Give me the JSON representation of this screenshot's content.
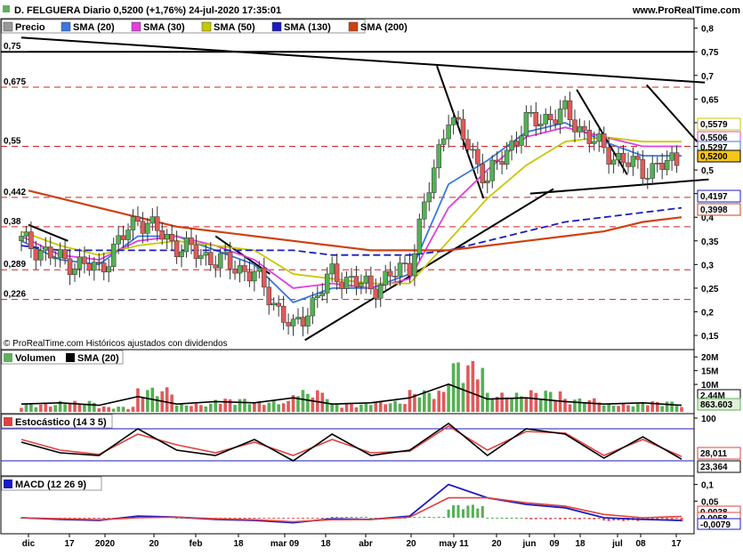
{
  "header": {
    "title": "D. FELGUERA Diario 0,5200 (+1,76%) 24-jul-2020 17:35:01",
    "site": "www.ProRealTime.com"
  },
  "panels": {
    "price": {
      "legend": [
        {
          "label": "Precio",
          "color": "#999999"
        },
        {
          "label": "SMA (20)",
          "color": "#3a78e0"
        },
        {
          "label": "SMA (30)",
          "color": "#e040e0"
        },
        {
          "label": "SMA (50)",
          "color": "#c8c800"
        },
        {
          "label": "SMA (130)",
          "color": "#1b1bc0"
        },
        {
          "label": "SMA (200)",
          "color": "#d04010"
        }
      ],
      "yaxis_ticks": [
        "0,8",
        "0,75",
        "0,7",
        "0,65",
        "0,6",
        "0,55",
        "0,5",
        "0,45",
        "0,4",
        "0,35",
        "0,3",
        "0,25",
        "0,2",
        "0,15"
      ],
      "level_labels": [
        "0,75",
        "0,675",
        "0,55",
        "0,442",
        "0,38",
        "0,289",
        "0,226"
      ],
      "value_boxes": [
        {
          "text": "0,5579",
          "color": "#c8c800"
        },
        {
          "text": "0,5506",
          "color": "#e040e0"
        },
        {
          "text": "0,5297",
          "color": "#3a78e0"
        },
        {
          "text": "0,5200",
          "color": "#000000"
        },
        {
          "text": "0,4197",
          "color": "#1b1bc0"
        },
        {
          "text": "0,3998",
          "color": "#d04010"
        }
      ],
      "copyright": "© ProRealTime.com Históricos ajustados con dividendos"
    },
    "volume": {
      "legend": [
        {
          "label": "Volumen",
          "color": "#60b060"
        },
        {
          "label": "SMA (20)",
          "color": "#000000"
        }
      ],
      "yaxis_ticks": [
        "20M",
        "15M",
        "10M"
      ],
      "value_boxes": [
        {
          "text": "2,44M",
          "color": "#000000"
        },
        {
          "text": "863.603",
          "color": "#60b060"
        }
      ]
    },
    "stochastic": {
      "legend": [
        {
          "label": "Estocástico (14 3 5)",
          "color": "#000000"
        }
      ],
      "yaxis_ticks": [
        "100"
      ],
      "value_boxes": [
        {
          "text": "28,011",
          "color": "#e04040"
        },
        {
          "text": "23,364",
          "color": "#000000"
        }
      ]
    },
    "macd": {
      "legend": [
        {
          "label": "MACD (12 26 9)",
          "color": "#000000"
        }
      ],
      "yaxis_ticks": [
        "0,1",
        "0,05"
      ],
      "value_boxes": [
        {
          "text": "0,0038",
          "color": "#e04040"
        },
        {
          "text": "0,0058",
          "color": "#e04040"
        },
        {
          "text": "-0,0079",
          "color": "#1b1bc0"
        }
      ]
    }
  },
  "xaxis_labels": [
    "dic",
    "17",
    "2020",
    "20",
    "feb",
    "18",
    "mar 09",
    "18",
    "abr",
    "20",
    "may 11",
    "20",
    "jun",
    "09",
    "18",
    "jul",
    "08",
    "17"
  ],
  "chart_data": {
    "type": "line",
    "title": "D. FELGUERA Diario 0,5200 (+1,76%) 24-jul-2020 17:35:01",
    "x": [
      "dic",
      "17",
      "2020",
      "20",
      "feb",
      "18",
      "mar 09",
      "18",
      "abr",
      "20",
      "may 11",
      "20",
      "jun",
      "09",
      "18",
      "jul",
      "08",
      "17"
    ],
    "series": [
      {
        "name": "Precio",
        "values": [
          0.35,
          0.31,
          0.29,
          0.4,
          0.34,
          0.31,
          0.28,
          0.16,
          0.28,
          0.25,
          0.3,
          0.62,
          0.48,
          0.6,
          0.62,
          0.54,
          0.5,
          0.52
        ]
      },
      {
        "name": "SMA (20)",
        "values": [
          0.35,
          0.31,
          0.3,
          0.36,
          0.36,
          0.33,
          0.3,
          0.22,
          0.25,
          0.25,
          0.28,
          0.47,
          0.52,
          0.58,
          0.6,
          0.56,
          0.53,
          0.53
        ]
      },
      {
        "name": "SMA (30)",
        "values": [
          0.36,
          0.32,
          0.31,
          0.35,
          0.36,
          0.34,
          0.31,
          0.25,
          0.26,
          0.25,
          0.27,
          0.42,
          0.5,
          0.57,
          0.59,
          0.57,
          0.55,
          0.55
        ]
      },
      {
        "name": "SMA (50)",
        "values": [
          0.37,
          0.34,
          0.32,
          0.34,
          0.35,
          0.34,
          0.33,
          0.28,
          0.27,
          0.26,
          0.26,
          0.35,
          0.44,
          0.51,
          0.56,
          0.57,
          0.56,
          0.56
        ]
      },
      {
        "name": "SMA (130)",
        "values": [
          0.34,
          0.33,
          0.33,
          0.33,
          0.33,
          0.33,
          0.33,
          0.33,
          0.32,
          0.32,
          0.32,
          0.33,
          0.35,
          0.37,
          0.39,
          0.4,
          0.41,
          0.42
        ]
      },
      {
        "name": "SMA (200)",
        "values": [
          0.46,
          0.44,
          0.42,
          0.4,
          0.38,
          0.37,
          0.36,
          0.35,
          0.34,
          0.33,
          0.33,
          0.33,
          0.34,
          0.35,
          0.36,
          0.37,
          0.39,
          0.4
        ]
      }
    ],
    "ylim": [
      0.12,
      0.82
    ],
    "levels": [
      0.75,
      0.675,
      0.55,
      0.442,
      0.38,
      0.289,
      0.226
    ],
    "volume": [
      3,
      4,
      2,
      9,
      3,
      5,
      4,
      8,
      3,
      4,
      8,
      19,
      7,
      8,
      5,
      3,
      4,
      2
    ],
    "stochastic_k": [
      55,
      35,
      30,
      80,
      40,
      30,
      60,
      20,
      70,
      30,
      40,
      90,
      30,
      80,
      70,
      25,
      65,
      23
    ],
    "stochastic_d": [
      60,
      40,
      32,
      70,
      50,
      35,
      55,
      30,
      60,
      35,
      38,
      85,
      40,
      75,
      72,
      30,
      60,
      28
    ],
    "macd_line": [
      0.0,
      -0.005,
      -0.008,
      0.005,
      0.002,
      -0.005,
      -0.008,
      -0.015,
      -0.003,
      -0.005,
      0.005,
      0.1,
      0.06,
      0.04,
      0.03,
      0.0,
      -0.005,
      -0.008
    ],
    "macd_signal": [
      0.0,
      -0.003,
      -0.006,
      0.0,
      0.002,
      -0.003,
      -0.006,
      -0.012,
      -0.006,
      -0.005,
      0.002,
      0.06,
      0.06,
      0.045,
      0.035,
      0.01,
      0.0,
      0.004
    ]
  }
}
